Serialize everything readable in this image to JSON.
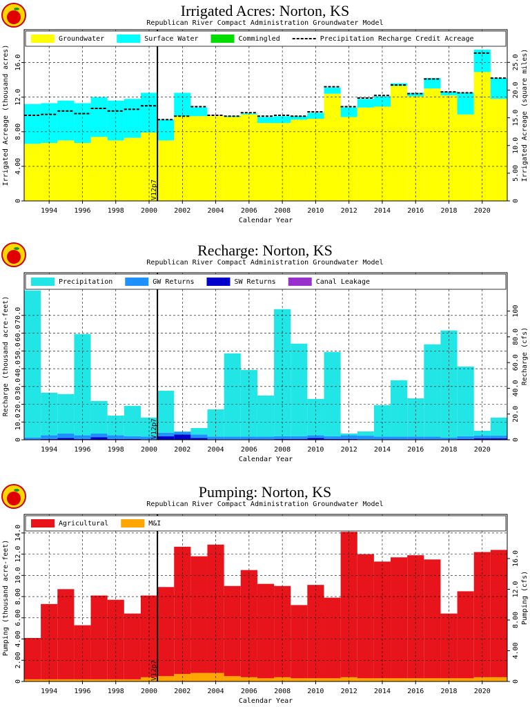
{
  "chart_data": [
    {
      "type": "bar",
      "title": "Irrigated Acres: Norton, KS",
      "subtitle": "Republican River Compact Administration Groundwater Model",
      "x_label": "Calendar Year",
      "y_label": "Irrigated Acreage (thousand acres)",
      "y2_label": "Irrigated Acreage (square miles)",
      "x": [
        1993,
        1994,
        1995,
        1996,
        1997,
        1998,
        1999,
        2000,
        2001,
        2002,
        2003,
        2004,
        2005,
        2006,
        2007,
        2008,
        2009,
        2010,
        2011,
        2012,
        2013,
        2014,
        2015,
        2016,
        2017,
        2018,
        2019,
        2020,
        2021
      ],
      "xlim": [
        1992.5,
        2021.5
      ],
      "xticks": [
        1994,
        1996,
        1998,
        2000,
        2002,
        2004,
        2006,
        2008,
        2010,
        2012,
        2014,
        2016,
        2018,
        2020
      ],
      "ylim": [
        0,
        19.8
      ],
      "yticks": [
        0,
        {
          "value": 4,
          "label": "4.00"
        },
        {
          "value": 8,
          "label": "8.00"
        },
        {
          "value": 12,
          "label": "12.0"
        },
        {
          "value": 16,
          "label": "16.0"
        }
      ],
      "y2lim": [
        0,
        30.9
      ],
      "y2ticks": [
        0,
        {
          "value": 5,
          "label": "5.00"
        },
        {
          "value": 10,
          "label": "10.0"
        },
        {
          "value": 15,
          "label": "15.0"
        },
        {
          "value": 20,
          "label": "20.0"
        },
        {
          "value": 25,
          "label": "25.0"
        }
      ],
      "grid": true,
      "stack_from_last": false,
      "annotation": {
        "text": "V12p7",
        "x": 2000.5
      },
      "series": [
        {
          "name": "Groundwater",
          "color": "#ffff00",
          "values": [
            6.6,
            6.7,
            7.0,
            6.7,
            7.4,
            7.0,
            7.3,
            7.9,
            7.0,
            9.8,
            9.8,
            9.8,
            9.7,
            10.0,
            9.0,
            9.0,
            9.4,
            9.5,
            12.4,
            9.7,
            10.8,
            10.9,
            13.3,
            12.1,
            13.0,
            12.2,
            10.0,
            14.9,
            11.8
          ]
        },
        {
          "name": "Surface Water",
          "color": "#00ffff",
          "values": [
            4.6,
            4.6,
            4.6,
            4.6,
            4.6,
            4.6,
            4.5,
            4.6,
            2.4,
            2.7,
            1.0,
            0.0,
            0.1,
            0.1,
            0.7,
            0.8,
            0.4,
            0.7,
            0.7,
            1.1,
            1.0,
            1.2,
            0.3,
            0.4,
            1.2,
            0.4,
            2.5,
            2.6,
            2.4
          ]
        },
        {
          "name": "Commingled",
          "color": "#00dd00",
          "values": [
            0,
            0,
            0,
            0,
            0,
            0,
            0,
            0,
            0,
            0,
            0,
            0,
            0,
            0,
            0,
            0,
            0,
            0,
            0,
            0,
            0,
            0,
            0,
            0,
            0,
            0,
            0,
            0,
            0
          ]
        },
        {
          "name": "Precipitation Recharge Credit Acreage",
          "type": "line",
          "dashed": true,
          "color": "#000000",
          "values": [
            9.9,
            10.0,
            10.4,
            10.1,
            10.7,
            10.4,
            10.6,
            11.0,
            9.4,
            9.8,
            10.9,
            9.9,
            9.8,
            10.2,
            9.8,
            9.9,
            9.8,
            10.3,
            13.2,
            10.9,
            11.9,
            12.2,
            13.4,
            12.4,
            14.1,
            12.6,
            12.5,
            17.1,
            14.2
          ]
        }
      ]
    },
    {
      "type": "bar",
      "title": "Recharge: Norton, KS",
      "subtitle": "Republican River Compact Administration Groundwater Model",
      "x_label": "Calendar Year",
      "y_label": "Recharge (thousand acre-feet)",
      "y2_label": "Recharge (cfs)",
      "x": [
        1993,
        1994,
        1995,
        1996,
        1997,
        1998,
        1999,
        2000,
        2001,
        2002,
        2003,
        2004,
        2005,
        2006,
        2007,
        2008,
        2009,
        2010,
        2011,
        2012,
        2013,
        2014,
        2015,
        2016,
        2017,
        2018,
        2019,
        2020,
        2021
      ],
      "xlim": [
        1992.5,
        2021.5
      ],
      "xticks": [
        1994,
        1996,
        1998,
        2000,
        2002,
        2004,
        2006,
        2008,
        2010,
        2012,
        2014,
        2016,
        2018,
        2020
      ],
      "ylim": [
        0,
        94
      ],
      "yticks": [
        0,
        {
          "value": 10,
          "label": "10.0"
        },
        {
          "value": 20,
          "label": "20.0"
        },
        {
          "value": 30,
          "label": "30.0"
        },
        {
          "value": 40,
          "label": "40.0"
        },
        {
          "value": 50,
          "label": "50.0"
        },
        {
          "value": 60,
          "label": "60.0"
        },
        {
          "value": 70,
          "label": "70.0"
        }
      ],
      "y2lim": [
        0,
        129.8
      ],
      "y2ticks": [
        0,
        {
          "value": 20,
          "label": "20.0"
        },
        {
          "value": 40,
          "label": "40.0"
        },
        {
          "value": 60,
          "label": "60.0"
        },
        {
          "value": 80,
          "label": "80.0"
        },
        100
      ],
      "grid": true,
      "stack_from_last": true,
      "annotation": {
        "text": "V12p7",
        "x": 2000.5
      },
      "series": [
        {
          "name": "Precipitation",
          "color": "#22e6e6",
          "values": [
            82.7,
            24.0,
            22.2,
            57.0,
            18.3,
            11.1,
            17.1,
            10.7,
            23.6,
            0.2,
            3.6,
            15.3,
            46.8,
            37.5,
            23.1,
            71.5,
            52.1,
            20.5,
            47.4,
            1.0,
            2.4,
            17.7,
            31.7,
            21.5,
            51.9,
            60.2,
            39.2,
            2.8,
            10.2
          ]
        },
        {
          "name": "GW Returns",
          "color": "#1e90ff",
          "values": [
            1.0,
            2.0,
            2.5,
            2.0,
            2.0,
            2.0,
            1.5,
            1.5,
            2.0,
            1.5,
            2.0,
            1.5,
            1.5,
            1.5,
            1.5,
            1.5,
            1.5,
            1.5,
            1.5,
            2.0,
            2.0,
            1.5,
            1.5,
            1.5,
            1.5,
            1.0,
            1.5,
            1.5,
            1.5
          ]
        },
        {
          "name": "SW Returns",
          "color": "#0000cd",
          "values": [
            0.3,
            0.5,
            1.0,
            0.5,
            1.5,
            0.5,
            0.5,
            0.3,
            2.0,
            3.0,
            1.0,
            0.3,
            0.3,
            0.3,
            0.3,
            0.5,
            0.5,
            1.0,
            0.5,
            0.5,
            0.3,
            0.3,
            0.3,
            0.3,
            0.3,
            0.3,
            0.5,
            0.8,
            0.8
          ]
        },
        {
          "name": "Canal Leakage",
          "color": "#9932cc",
          "values": [
            0,
            0,
            0,
            0,
            0,
            0,
            0,
            0,
            0,
            0,
            0,
            0,
            0,
            0,
            0,
            0,
            0,
            0,
            0,
            0,
            0,
            0,
            0,
            0,
            0,
            0,
            0,
            0,
            0
          ]
        }
      ]
    },
    {
      "type": "bar",
      "title": "Pumping: Norton, KS",
      "subtitle": "Republican River Compact Administration Groundwater Model",
      "x_label": "Calendar Year",
      "y_label": "Pumping (thousand acre-feet)",
      "y2_label": "Pumping (cfs)",
      "x": [
        1993,
        1994,
        1995,
        1996,
        1997,
        1998,
        1999,
        2000,
        2001,
        2002,
        2003,
        2004,
        2005,
        2006,
        2007,
        2008,
        2009,
        2010,
        2011,
        2012,
        2013,
        2014,
        2015,
        2016,
        2017,
        2018,
        2019,
        2020,
        2021
      ],
      "xlim": [
        1992.5,
        2021.5
      ],
      "xticks": [
        1994,
        1996,
        1998,
        2000,
        2002,
        2004,
        2006,
        2008,
        2010,
        2012,
        2014,
        2016,
        2018,
        2020
      ],
      "ylim": [
        0,
        15.75
      ],
      "yticks": [
        0,
        {
          "value": 2,
          "label": "2.00"
        },
        {
          "value": 4,
          "label": "4.00"
        },
        {
          "value": 6,
          "label": "6.00"
        },
        {
          "value": 8,
          "label": "8.00"
        },
        {
          "value": 10,
          "label": "10.0"
        },
        {
          "value": 12,
          "label": "12.0"
        },
        {
          "value": 14,
          "label": "14.0"
        }
      ],
      "y2lim": [
        0,
        21.75
      ],
      "y2ticks": [
        0,
        {
          "value": 4,
          "label": "4.00"
        },
        {
          "value": 8,
          "label": "8.00"
        },
        {
          "value": 12,
          "label": "12.0"
        },
        {
          "value": 16,
          "label": "16.0"
        }
      ],
      "grid": true,
      "stack_from_last": true,
      "annotation": {
        "text": "V12p7",
        "x": 2000.5
      },
      "series": [
        {
          "name": "Agricultural",
          "color": "#e8141c",
          "values": [
            3.9,
            7.1,
            8.5,
            5.1,
            7.9,
            7.5,
            6.2,
            7.7,
            8.4,
            12.0,
            11.0,
            12.1,
            8.5,
            10.1,
            8.9,
            8.6,
            6.9,
            8.8,
            7.6,
            13.7,
            11.7,
            11.0,
            11.4,
            11.6,
            11.2,
            6.1,
            8.2,
            11.8,
            12.0
          ]
        },
        {
          "name": "M&I",
          "color": "#ffa500",
          "values": [
            0.2,
            0.2,
            0.2,
            0.2,
            0.2,
            0.2,
            0.2,
            0.4,
            0.5,
            0.7,
            0.8,
            0.8,
            0.5,
            0.4,
            0.3,
            0.4,
            0.3,
            0.3,
            0.3,
            0.4,
            0.3,
            0.3,
            0.3,
            0.3,
            0.3,
            0.3,
            0.3,
            0.4,
            0.4
          ]
        }
      ]
    }
  ]
}
